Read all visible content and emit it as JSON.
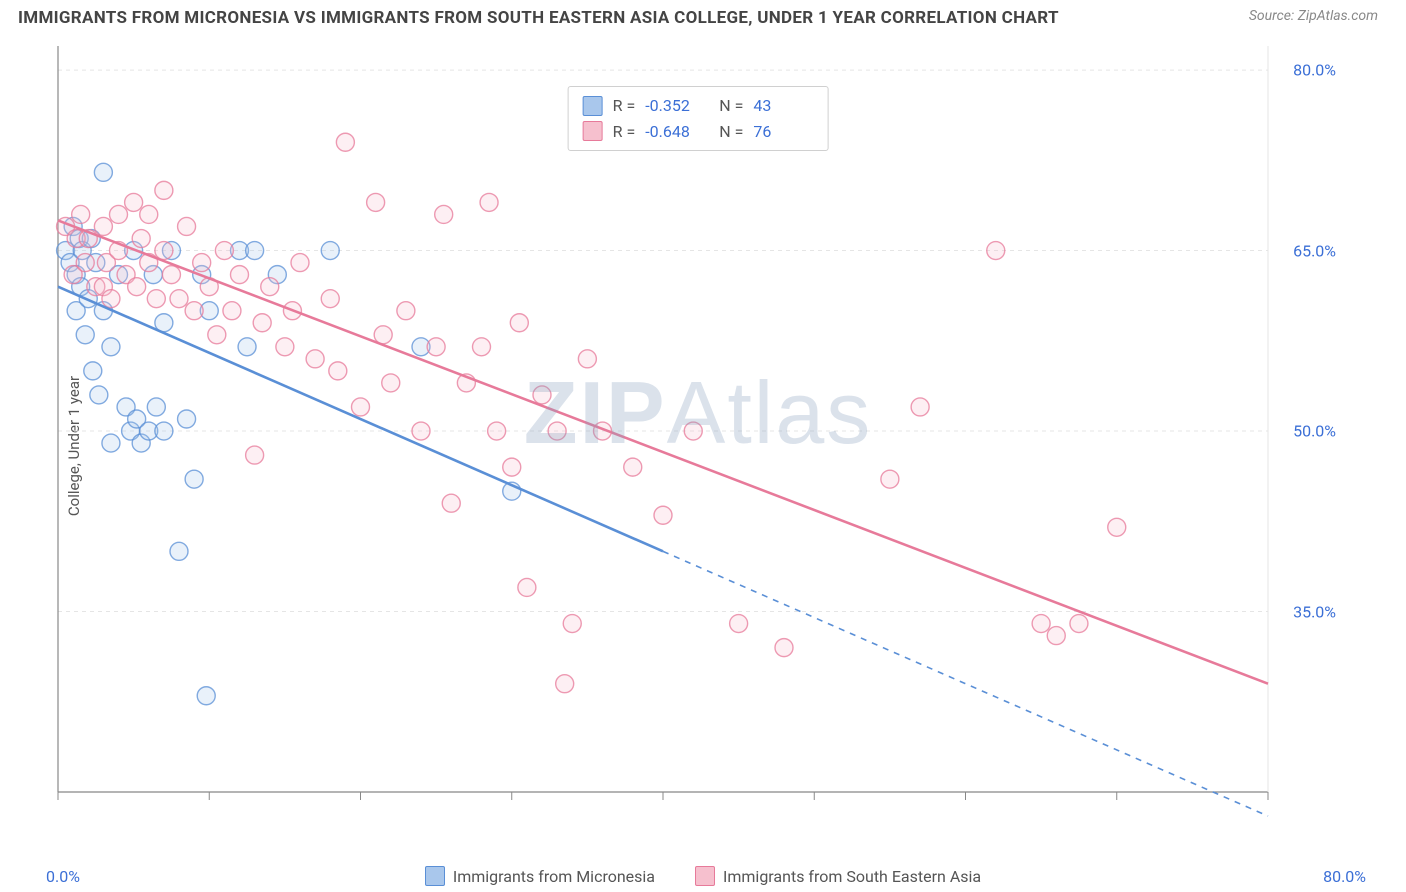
{
  "title": "IMMIGRANTS FROM MICRONESIA VS IMMIGRANTS FROM SOUTH EASTERN ASIA COLLEGE, UNDER 1 YEAR CORRELATION CHART",
  "source": "Source: ZipAtlas.com",
  "watermark": "ZIPAtlas",
  "y_axis_label": "College, Under 1 year",
  "chart": {
    "type": "scatter-with-regression",
    "background_color": "#ffffff",
    "grid_color": "#e5e5e5",
    "axis_color": "#888888",
    "tick_color": "#888888",
    "xlim": [
      0,
      80
    ],
    "ylim": [
      20,
      82
    ],
    "x_ticks": [
      0,
      10,
      20,
      30,
      40,
      50,
      60,
      70,
      80
    ],
    "x_tick_labels_shown": {
      "0": "0.0%",
      "80": "80.0%"
    },
    "y_ticks": [
      35.0,
      50.0,
      65.0,
      80.0
    ],
    "y_tick_format": "%.1f%%",
    "label_color": "#3b6fd6",
    "label_fontsize": 16,
    "title_fontsize": 17,
    "title_color": "#444444",
    "marker_radius": 9,
    "marker_fill_opacity": 0.25,
    "marker_stroke_width": 1.4,
    "line_width": 2.6,
    "series": [
      {
        "name": "Immigrants from Micronesia",
        "color": "#5a8fd6",
        "fill": "#a9c7ec",
        "R": "-0.352",
        "N": "43",
        "regression": {
          "x1": 0,
          "y1": 62.0,
          "x2": 40,
          "y2": 40.0,
          "dashed_x2": 80,
          "dashed_y2": 18.0
        },
        "points": [
          [
            0.5,
            65
          ],
          [
            0.8,
            64
          ],
          [
            1.0,
            67
          ],
          [
            1.2,
            63
          ],
          [
            1.2,
            60
          ],
          [
            1.4,
            66
          ],
          [
            1.5,
            62
          ],
          [
            1.6,
            65
          ],
          [
            1.8,
            58
          ],
          [
            2.0,
            61
          ],
          [
            2.2,
            66
          ],
          [
            2.3,
            55
          ],
          [
            2.5,
            64
          ],
          [
            2.7,
            53
          ],
          [
            3.0,
            71.5
          ],
          [
            3.0,
            60
          ],
          [
            3.5,
            49
          ],
          [
            3.5,
            57
          ],
          [
            4.0,
            63
          ],
          [
            4.5,
            52
          ],
          [
            4.8,
            50
          ],
          [
            5.0,
            65
          ],
          [
            5.2,
            51
          ],
          [
            5.5,
            49
          ],
          [
            6.0,
            50
          ],
          [
            6.3,
            63
          ],
          [
            6.5,
            52
          ],
          [
            7.0,
            50
          ],
          [
            7.0,
            59
          ],
          [
            7.5,
            65
          ],
          [
            8.0,
            40
          ],
          [
            8.5,
            51
          ],
          [
            9.0,
            46
          ],
          [
            9.5,
            63
          ],
          [
            9.8,
            28
          ],
          [
            10.0,
            60
          ],
          [
            12.0,
            65
          ],
          [
            12.5,
            57
          ],
          [
            13.0,
            65
          ],
          [
            14.5,
            63
          ],
          [
            18.0,
            65
          ],
          [
            24.0,
            57
          ],
          [
            30.0,
            45
          ]
        ]
      },
      {
        "name": "Immigrants from South Eastern Asia",
        "color": "#e77a9a",
        "fill": "#f6c0ce",
        "R": "-0.648",
        "N": "76",
        "regression": {
          "x1": 0,
          "y1": 67.5,
          "x2": 80,
          "y2": 29.0
        },
        "points": [
          [
            0.5,
            67
          ],
          [
            1.0,
            63
          ],
          [
            1.2,
            66
          ],
          [
            1.5,
            68
          ],
          [
            1.8,
            64
          ],
          [
            2.0,
            66
          ],
          [
            2.5,
            62
          ],
          [
            3.0,
            67
          ],
          [
            3.0,
            62
          ],
          [
            3.2,
            64
          ],
          [
            3.5,
            61
          ],
          [
            4.0,
            68
          ],
          [
            4.0,
            65
          ],
          [
            4.5,
            63
          ],
          [
            5.0,
            69
          ],
          [
            5.2,
            62
          ],
          [
            5.5,
            66
          ],
          [
            6.0,
            64
          ],
          [
            6.0,
            68
          ],
          [
            6.5,
            61
          ],
          [
            7.0,
            65
          ],
          [
            7.0,
            70
          ],
          [
            7.5,
            63
          ],
          [
            8.0,
            61
          ],
          [
            8.5,
            67
          ],
          [
            9.0,
            60
          ],
          [
            9.5,
            64
          ],
          [
            10.0,
            62
          ],
          [
            10.5,
            58
          ],
          [
            11.0,
            65
          ],
          [
            11.5,
            60
          ],
          [
            12.0,
            63
          ],
          [
            13.0,
            48
          ],
          [
            13.5,
            59
          ],
          [
            14.0,
            62
          ],
          [
            15.0,
            57
          ],
          [
            15.5,
            60
          ],
          [
            16.0,
            64
          ],
          [
            17.0,
            56
          ],
          [
            18.0,
            61
          ],
          [
            18.5,
            55
          ],
          [
            19.0,
            74
          ],
          [
            20.0,
            52
          ],
          [
            21.0,
            69
          ],
          [
            21.5,
            58
          ],
          [
            22.0,
            54
          ],
          [
            23.0,
            60
          ],
          [
            24.0,
            50
          ],
          [
            25.0,
            57
          ],
          [
            25.5,
            68
          ],
          [
            26.0,
            44
          ],
          [
            27.0,
            54
          ],
          [
            28.0,
            57
          ],
          [
            28.5,
            69
          ],
          [
            29.0,
            50
          ],
          [
            30.0,
            47
          ],
          [
            30.5,
            59
          ],
          [
            31.0,
            37
          ],
          [
            32.0,
            53
          ],
          [
            33.0,
            50
          ],
          [
            33.5,
            29
          ],
          [
            34.0,
            34
          ],
          [
            35.0,
            56
          ],
          [
            36.0,
            50
          ],
          [
            38.0,
            47
          ],
          [
            40.0,
            43
          ],
          [
            42.0,
            50
          ],
          [
            45.0,
            34
          ],
          [
            48.0,
            32
          ],
          [
            55.0,
            46
          ],
          [
            57.0,
            52
          ],
          [
            62.0,
            65
          ],
          [
            65.0,
            34
          ],
          [
            66.0,
            33
          ],
          [
            67.5,
            34
          ],
          [
            70.0,
            42
          ]
        ]
      }
    ],
    "bottom_legend": [
      {
        "swatch_fill": "#a9c7ec",
        "swatch_stroke": "#5a8fd6",
        "label": "Immigrants from Micronesia"
      },
      {
        "swatch_fill": "#f6c0ce",
        "swatch_stroke": "#e77a9a",
        "label": "Immigrants from South Eastern Asia"
      }
    ]
  }
}
